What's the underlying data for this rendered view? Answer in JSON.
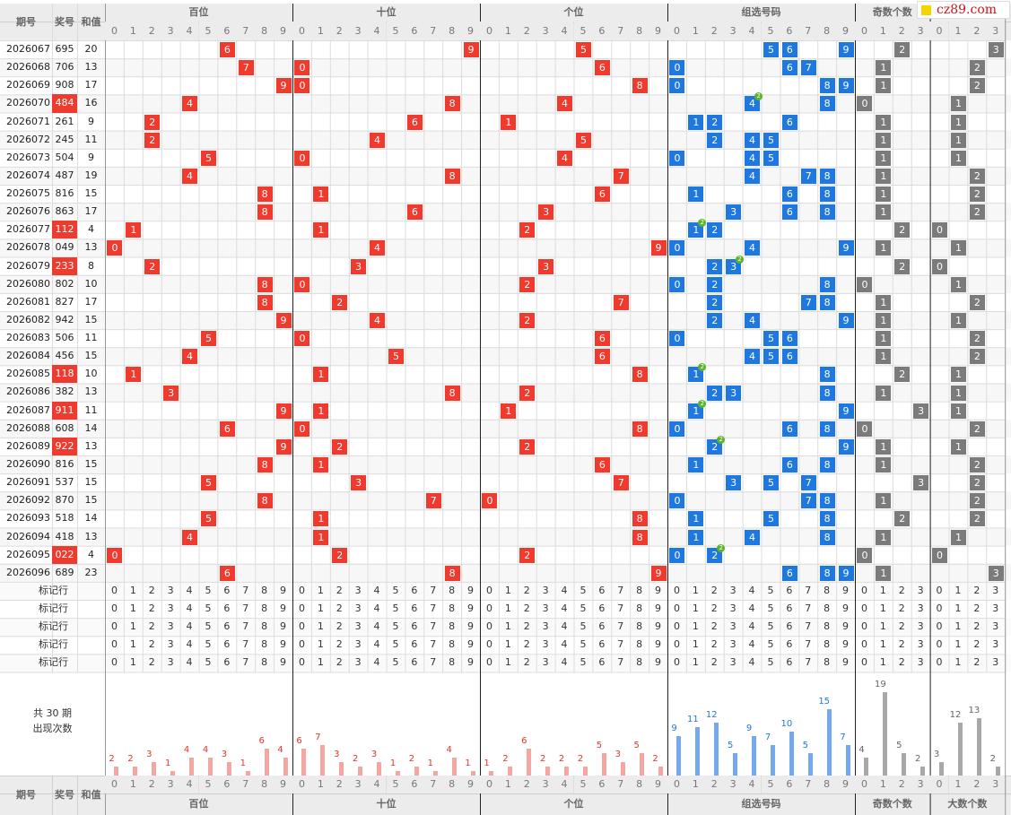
{
  "header": {
    "issue_label": "期号",
    "prize_label": "奖号",
    "sum_label": "和值",
    "groups": [
      {
        "label": "百位",
        "digits": [
          "0",
          "1",
          "2",
          "3",
          "4",
          "5",
          "6",
          "7",
          "8",
          "9"
        ]
      },
      {
        "label": "十位",
        "digits": [
          "0",
          "1",
          "2",
          "3",
          "4",
          "5",
          "6",
          "7",
          "8",
          "9"
        ]
      },
      {
        "label": "个位",
        "digits": [
          "0",
          "1",
          "2",
          "3",
          "4",
          "5",
          "6",
          "7",
          "8",
          "9"
        ]
      },
      {
        "label": "组选号码",
        "digits": [
          "0",
          "1",
          "2",
          "3",
          "4",
          "5",
          "6",
          "7",
          "8",
          "9"
        ]
      },
      {
        "label": "奇数个数",
        "digits": [
          "0",
          "1",
          "2",
          "3"
        ]
      },
      {
        "label": "大数个数",
        "digits": [
          "0",
          "1",
          "2",
          "3"
        ]
      }
    ]
  },
  "brand": {
    "text": "cz89.com",
    "color": "#c4161c"
  },
  "colors": {
    "position": "#f03a2e",
    "group": "#1f78e0",
    "count": "#7b7b7b",
    "repeat_badge": "#5ab528"
  },
  "rows": [
    {
      "issue": "2026067",
      "prize": "695",
      "sum": "20",
      "odd": "2",
      "big": "3",
      "repeat": null,
      "hl": false
    },
    {
      "issue": "2026068",
      "prize": "706",
      "sum": "13",
      "odd": "1",
      "big": "2",
      "repeat": null,
      "hl": false
    },
    {
      "issue": "2026069",
      "prize": "908",
      "sum": "17",
      "odd": "1",
      "big": "2",
      "repeat": null,
      "hl": false
    },
    {
      "issue": "2026070",
      "prize": "484",
      "sum": "16",
      "odd": "0",
      "big": "1",
      "repeat": "4",
      "hl": true
    },
    {
      "issue": "2026071",
      "prize": "261",
      "sum": "9",
      "odd": "1",
      "big": "1",
      "repeat": null,
      "hl": false
    },
    {
      "issue": "2026072",
      "prize": "245",
      "sum": "11",
      "odd": "1",
      "big": "1",
      "repeat": null,
      "hl": false
    },
    {
      "issue": "2026073",
      "prize": "504",
      "sum": "9",
      "odd": "1",
      "big": "1",
      "repeat": null,
      "hl": false
    },
    {
      "issue": "2026074",
      "prize": "487",
      "sum": "19",
      "odd": "1",
      "big": "2",
      "repeat": null,
      "hl": false
    },
    {
      "issue": "2026075",
      "prize": "816",
      "sum": "15",
      "odd": "1",
      "big": "2",
      "repeat": null,
      "hl": false
    },
    {
      "issue": "2026076",
      "prize": "863",
      "sum": "17",
      "odd": "1",
      "big": "2",
      "repeat": null,
      "hl": false
    },
    {
      "issue": "2026077",
      "prize": "112",
      "sum": "4",
      "odd": "2",
      "big": "0",
      "repeat": "1",
      "hl": true
    },
    {
      "issue": "2026078",
      "prize": "049",
      "sum": "13",
      "odd": "1",
      "big": "1",
      "repeat": null,
      "hl": false
    },
    {
      "issue": "2026079",
      "prize": "233",
      "sum": "8",
      "odd": "2",
      "big": "0",
      "repeat": "3",
      "hl": true
    },
    {
      "issue": "2026080",
      "prize": "802",
      "sum": "10",
      "odd": "0",
      "big": "1",
      "repeat": null,
      "hl": false
    },
    {
      "issue": "2026081",
      "prize": "827",
      "sum": "17",
      "odd": "1",
      "big": "2",
      "repeat": null,
      "hl": false
    },
    {
      "issue": "2026082",
      "prize": "942",
      "sum": "15",
      "odd": "1",
      "big": "1",
      "repeat": null,
      "hl": false
    },
    {
      "issue": "2026083",
      "prize": "506",
      "sum": "11",
      "odd": "1",
      "big": "2",
      "repeat": null,
      "hl": false
    },
    {
      "issue": "2026084",
      "prize": "456",
      "sum": "15",
      "odd": "1",
      "big": "2",
      "repeat": null,
      "hl": false
    },
    {
      "issue": "2026085",
      "prize": "118",
      "sum": "10",
      "odd": "2",
      "big": "1",
      "repeat": "1",
      "hl": true
    },
    {
      "issue": "2026086",
      "prize": "382",
      "sum": "13",
      "odd": "1",
      "big": "1",
      "repeat": null,
      "hl": false
    },
    {
      "issue": "2026087",
      "prize": "911",
      "sum": "11",
      "odd": "3",
      "big": "1",
      "repeat": "1",
      "hl": true
    },
    {
      "issue": "2026088",
      "prize": "608",
      "sum": "14",
      "odd": "0",
      "big": "2",
      "repeat": null,
      "hl": false
    },
    {
      "issue": "2026089",
      "prize": "922",
      "sum": "13",
      "odd": "1",
      "big": "1",
      "repeat": "2",
      "hl": true
    },
    {
      "issue": "2026090",
      "prize": "816",
      "sum": "15",
      "odd": "1",
      "big": "2",
      "repeat": null,
      "hl": false
    },
    {
      "issue": "2026091",
      "prize": "537",
      "sum": "15",
      "odd": "3",
      "big": "2",
      "repeat": null,
      "hl": false
    },
    {
      "issue": "2026092",
      "prize": "870",
      "sum": "15",
      "odd": "1",
      "big": "2",
      "repeat": null,
      "hl": false
    },
    {
      "issue": "2026093",
      "prize": "518",
      "sum": "14",
      "odd": "2",
      "big": "2",
      "repeat": null,
      "hl": false
    },
    {
      "issue": "2026094",
      "prize": "418",
      "sum": "13",
      "odd": "1",
      "big": "1",
      "repeat": null,
      "hl": false
    },
    {
      "issue": "2026095",
      "prize": "022",
      "sum": "4",
      "odd": "0",
      "big": "0",
      "repeat": "2",
      "hl": true
    },
    {
      "issue": "2026096",
      "prize": "689",
      "sum": "23",
      "odd": "1",
      "big": "3",
      "repeat": null,
      "hl": false
    }
  ],
  "mark_label": "标记行",
  "mark_rows": 5,
  "summary": {
    "title": "共 30 期",
    "subtitle": "出现次数"
  },
  "chart_data": {
    "type": "bar",
    "title": "出现次数",
    "series": [
      {
        "name": "百位",
        "categories": [
          "0",
          "1",
          "2",
          "3",
          "4",
          "5",
          "6",
          "7",
          "8",
          "9"
        ],
        "values": [
          2,
          2,
          3,
          1,
          4,
          4,
          3,
          1,
          6,
          4
        ]
      },
      {
        "name": "十位",
        "categories": [
          "0",
          "1",
          "2",
          "3",
          "4",
          "5",
          "6",
          "7",
          "8",
          "9"
        ],
        "values": [
          6,
          7,
          3,
          2,
          3,
          1,
          2,
          1,
          4,
          1
        ]
      },
      {
        "name": "个位",
        "categories": [
          "0",
          "1",
          "2",
          "3",
          "4",
          "5",
          "6",
          "7",
          "8",
          "9"
        ],
        "values": [
          1,
          2,
          6,
          2,
          2,
          2,
          5,
          3,
          5,
          2
        ]
      },
      {
        "name": "组选号码",
        "categories": [
          "0",
          "1",
          "2",
          "3",
          "4",
          "5",
          "6",
          "7",
          "8",
          "9"
        ],
        "values": [
          9,
          11,
          12,
          5,
          9,
          7,
          10,
          5,
          15,
          7
        ]
      },
      {
        "name": "奇数个数",
        "categories": [
          "0",
          "1",
          "2",
          "3"
        ],
        "values": [
          4,
          19,
          5,
          2
        ]
      },
      {
        "name": "大数个数",
        "categories": [
          "0",
          "1",
          "2",
          "3"
        ],
        "values": [
          3,
          12,
          13,
          2
        ]
      }
    ]
  }
}
